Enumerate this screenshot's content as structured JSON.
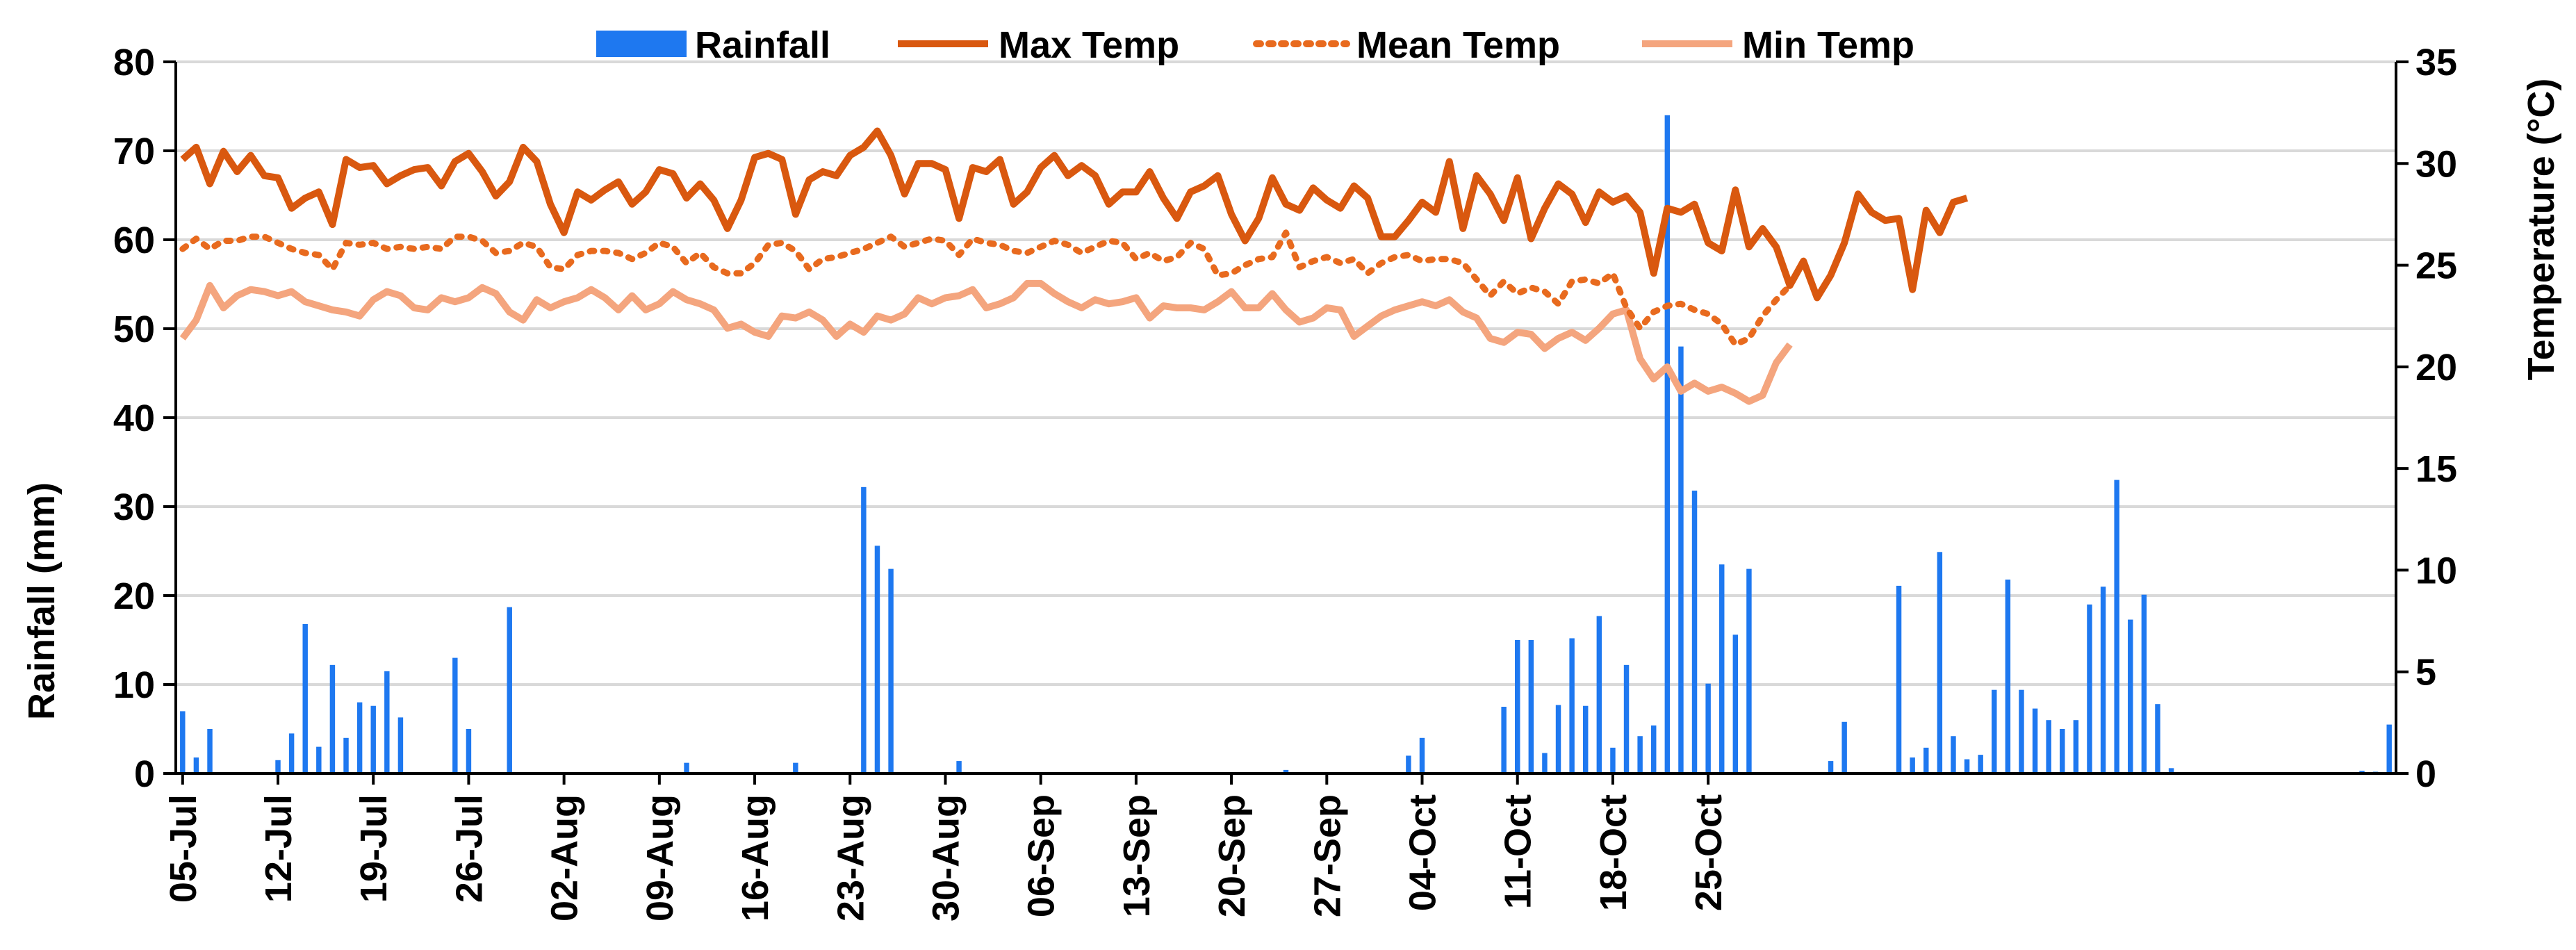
{
  "chart_data": {
    "type": "bar+line",
    "title": "",
    "x_labels": [
      "05-Jul",
      "12-Jul",
      "19-Jul",
      "26-Jul",
      "02-Aug",
      "09-Aug",
      "16-Aug",
      "23-Aug",
      "30-Aug",
      "06-Sep",
      "13-Sep",
      "20-Sep",
      "27-Sep",
      "04-Oct",
      "11-Oct",
      "18-Oct",
      "25-Oct"
    ],
    "xlabel": "",
    "ylabel_left": "Rainfall (mm)",
    "ylabel_right": "Temperature (°C)",
    "ylim_left": [
      0,
      80
    ],
    "yticks_left": [
      "0",
      "10",
      "20",
      "30",
      "40",
      "50",
      "60",
      "70",
      "80"
    ],
    "ylim_right": [
      0,
      35
    ],
    "yticks_right": [
      "0",
      "5",
      "10",
      "15",
      "20",
      "25",
      "30",
      "35"
    ],
    "x_start_date": "2016-07-05",
    "legend": {
      "rainfall": "Rainfall",
      "max_temp": "Max Temp",
      "mean_temp": "Mean Temp",
      "min_temp": "Min Temp"
    },
    "colors": {
      "rainfall": "#1E78F0",
      "max_temp": "#D9580F",
      "mean_temp": "#E86A1E",
      "min_temp": "#F4A57E",
      "grid": "#D9D9D9"
    },
    "rainfall_mm": [
      7,
      1.8,
      5,
      0,
      0,
      0,
      0,
      1.5,
      4.5,
      16.8,
      3,
      12.2,
      4,
      8,
      7.6,
      11.5,
      6.3,
      0,
      0,
      0,
      13,
      5,
      0,
      0,
      18.7,
      0,
      0,
      0,
      0,
      0,
      0,
      0,
      0,
      0,
      0,
      0,
      0,
      1.2,
      0,
      0,
      0,
      0,
      0,
      0,
      0,
      1.2,
      0,
      0,
      0,
      0,
      32.2,
      25.6,
      23,
      0,
      0,
      0,
      0,
      1.4,
      0,
      0,
      0,
      0,
      0,
      0,
      0,
      0,
      0,
      0,
      0,
      0,
      0,
      0,
      0,
      0,
      0,
      0,
      0,
      0,
      0,
      0,
      0,
      0.4,
      0,
      0,
      0,
      0,
      0,
      0,
      0,
      0,
      2,
      4,
      0,
      0,
      0,
      0,
      0,
      7.5,
      15,
      15,
      2.3,
      7.7,
      15.2,
      7.6,
      17.7,
      2.9,
      12.2,
      4.2,
      5.4,
      74,
      48,
      31.8,
      10.1,
      23.5,
      15.6,
      23,
      0,
      0,
      0,
      0,
      0,
      1.4,
      5.8,
      0,
      0,
      0,
      21.1,
      1.8,
      2.9,
      24.9,
      4.2,
      1.6,
      2.1,
      9.4,
      21.8,
      9.4,
      7.3,
      6,
      5,
      6,
      19,
      21,
      33,
      17.3,
      20.1,
      7.8,
      0.6,
      0,
      0,
      0,
      0,
      0,
      0,
      0,
      0,
      0,
      0,
      0,
      0,
      0,
      0.3,
      0.2,
      5.5
    ],
    "max_temp_c": [
      30.2,
      30.8,
      29,
      30.6,
      29.6,
      30.4,
      29.4,
      29.3,
      27.8,
      28.3,
      28.6,
      27,
      30.2,
      29.8,
      29.9,
      29,
      29.4,
      29.7,
      29.8,
      28.9,
      30.1,
      30.5,
      29.6,
      28.4,
      29.1,
      30.8,
      30.1,
      28,
      26.6,
      28.6,
      28.2,
      28.7,
      29.1,
      28,
      28.6,
      29.7,
      29.5,
      28.3,
      29,
      28.2,
      26.8,
      28.2,
      30.3,
      30.5,
      30.2,
      27.5,
      29.2,
      29.6,
      29.4,
      30.4,
      30.8,
      31.6,
      30.4,
      28.5,
      30,
      30,
      29.7,
      27.3,
      29.8,
      29.6,
      30.2,
      28,
      28.6,
      29.8,
      30.4,
      29.4,
      29.9,
      29.4,
      28,
      28.6,
      28.6,
      29.6,
      28.3,
      27.3,
      28.6,
      28.9,
      29.4,
      27.5,
      26.2,
      27.3,
      29.3,
      28,
      27.7,
      28.8,
      28.2,
      27.8,
      28.9,
      28.3,
      26.4,
      26.4,
      27.2,
      28.1,
      27.6,
      30.1,
      26.8,
      29.4,
      28.5,
      27.2,
      29.3,
      26.3,
      27.8,
      29,
      28.5,
      27.1,
      28.6,
      28.1,
      28.4,
      27.6,
      24.6,
      27.8,
      27.6,
      28,
      26.1,
      25.7,
      28.7,
      25.9,
      26.8,
      25.9,
      24,
      25.2,
      23.4,
      24.5,
      26.1,
      28.5,
      27.6,
      27.2,
      27.3,
      23.8,
      27.7,
      26.6,
      28.1,
      28.3
    ],
    "mean_temp_c": [
      25.8,
      26.3,
      25.8,
      26.2,
      26.2,
      26.4,
      26.4,
      26.1,
      25.8,
      25.6,
      25.5,
      24.8,
      26.1,
      26,
      26.1,
      25.8,
      25.9,
      25.8,
      25.9,
      25.8,
      26.4,
      26.4,
      26.2,
      25.6,
      25.7,
      26.1,
      25.9,
      24.9,
      24.8,
      25.5,
      25.7,
      25.7,
      25.6,
      25.3,
      25.6,
      26.1,
      25.9,
      25.1,
      25.6,
      24.9,
      24.6,
      24.6,
      25.1,
      26,
      26.1,
      25.7,
      24.8,
      25.3,
      25.4,
      25.6,
      25.8,
      26.1,
      26.4,
      25.9,
      26.1,
      26.3,
      26.2,
      25.5,
      26.3,
      26.1,
      26,
      25.7,
      25.6,
      25.9,
      26.2,
      26,
      25.6,
      25.9,
      26.2,
      26.1,
      25.3,
      25.6,
      25.2,
      25.4,
      26.1,
      25.8,
      24.5,
      24.6,
      25,
      25.3,
      25.4,
      26.6,
      24.9,
      25.2,
      25.4,
      25.1,
      25.3,
      24.6,
      25.1,
      25.4,
      25.5,
      25.2,
      25.3,
      25.3,
      25.1,
      24.3,
      23.5,
      24.2,
      23.6,
      23.9,
      23.7,
      23.1,
      24.2,
      24.3,
      24.1,
      24.6,
      22.9,
      21.9,
      22.7,
      23,
      23.1,
      22.8,
      22.6,
      22.1,
      21.1,
      21.4,
      22.5,
      23.3,
      24
    ],
    "min_temp_c": [
      21.4,
      22.3,
      24,
      22.9,
      23.5,
      23.8,
      23.7,
      23.5,
      23.7,
      23.2,
      23,
      22.8,
      22.7,
      22.5,
      23.3,
      23.7,
      23.5,
      22.9,
      22.8,
      23.4,
      23.2,
      23.4,
      23.9,
      23.6,
      22.7,
      22.3,
      23.3,
      22.9,
      23.2,
      23.4,
      23.8,
      23.4,
      22.8,
      23.5,
      22.8,
      23.1,
      23.7,
      23.3,
      23.1,
      22.8,
      21.9,
      22.1,
      21.7,
      21.5,
      22.5,
      22.4,
      22.7,
      22.3,
      21.5,
      22.1,
      21.7,
      22.5,
      22.3,
      22.6,
      23.4,
      23.1,
      23.4,
      23.5,
      23.8,
      22.9,
      23.1,
      23.4,
      24.1,
      24.1,
      23.6,
      23.2,
      22.9,
      23.3,
      23.1,
      23.2,
      23.4,
      22.4,
      23,
      22.9,
      22.9,
      22.8,
      23.2,
      23.7,
      22.9,
      22.9,
      23.6,
      22.8,
      22.2,
      22.4,
      22.9,
      22.8,
      21.5,
      22,
      22.5,
      22.8,
      23,
      23.2,
      23,
      23.3,
      22.7,
      22.4,
      21.4,
      21.2,
      21.7,
      21.6,
      20.9,
      21.4,
      21.7,
      21.3,
      21.9,
      22.6,
      22.8,
      20.4,
      19.4,
      20,
      18.8,
      19.2,
      18.8,
      19,
      18.7,
      18.3,
      18.6,
      20.2,
      21.1
    ]
  }
}
